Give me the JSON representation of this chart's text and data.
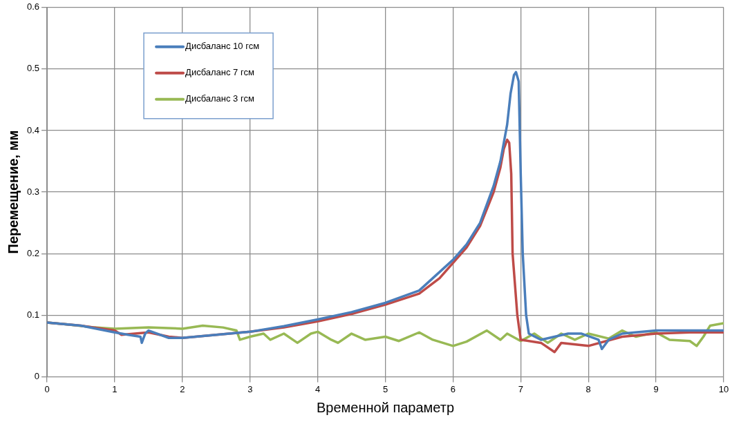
{
  "chart_data": {
    "type": "line",
    "xlabel": "Временной параметр",
    "ylabel": "Перемещение, мм",
    "xlim": [
      0,
      10
    ],
    "ylim": [
      0,
      0.6
    ],
    "xticks": [
      0,
      1,
      2,
      3,
      4,
      5,
      6,
      7,
      8,
      9,
      10
    ],
    "yticks": [
      0,
      0.1,
      0.2,
      0.3,
      0.4,
      0.5,
      0.6
    ],
    "grid": true,
    "legend": "top left",
    "marker": "none",
    "line_style": "solid",
    "series": [
      {
        "name": "Дисбаланс 10 гсм",
        "color": "#4a7ebb",
        "x": [
          0,
          0.5,
          1,
          1.2,
          1.38,
          1.4,
          1.45,
          1.5,
          1.8,
          2,
          2.5,
          3,
          3.5,
          4,
          4.5,
          5,
          5.5,
          6,
          6.2,
          6.4,
          6.6,
          6.7,
          6.8,
          6.85,
          6.9,
          6.93,
          6.97,
          7,
          7.03,
          7.08,
          7.12,
          7.3,
          7.5,
          7.7,
          7.9,
          8.15,
          8.2,
          8.3,
          8.5,
          9,
          9.5,
          10
        ],
        "values": [
          0.088,
          0.083,
          0.072,
          0.068,
          0.065,
          0.055,
          0.07,
          0.075,
          0.063,
          0.063,
          0.068,
          0.073,
          0.082,
          0.093,
          0.105,
          0.12,
          0.14,
          0.19,
          0.215,
          0.25,
          0.31,
          0.35,
          0.41,
          0.46,
          0.49,
          0.495,
          0.48,
          0.33,
          0.2,
          0.1,
          0.07,
          0.06,
          0.065,
          0.07,
          0.07,
          0.06,
          0.045,
          0.06,
          0.07,
          0.075,
          0.075,
          0.075
        ]
      },
      {
        "name": "Дисбаланс 7 гсм",
        "color": "#be4b48",
        "x": [
          0,
          0.5,
          1,
          1.1,
          1.5,
          1.8,
          2,
          3,
          3.5,
          4,
          4.5,
          5,
          5.5,
          5.8,
          6,
          6.2,
          6.4,
          6.6,
          6.7,
          6.75,
          6.8,
          6.83,
          6.86,
          6.88,
          6.95,
          7,
          7.3,
          7.5,
          7.6,
          8,
          8.5,
          9,
          9.5,
          10
        ],
        "values": [
          0.088,
          0.083,
          0.075,
          0.068,
          0.072,
          0.065,
          0.063,
          0.073,
          0.08,
          0.09,
          0.102,
          0.117,
          0.135,
          0.16,
          0.185,
          0.21,
          0.245,
          0.3,
          0.34,
          0.37,
          0.385,
          0.38,
          0.33,
          0.2,
          0.1,
          0.06,
          0.055,
          0.04,
          0.055,
          0.05,
          0.065,
          0.07,
          0.072,
          0.072
        ]
      },
      {
        "name": "Дисбаланс 3 гсм",
        "color": "#98b954",
        "x": [
          0,
          0.3,
          0.7,
          1,
          1.5,
          2,
          2.3,
          2.6,
          2.8,
          2.85,
          3,
          3.2,
          3.3,
          3.5,
          3.7,
          3.9,
          4,
          4.2,
          4.3,
          4.5,
          4.7,
          5,
          5.2,
          5.5,
          5.7,
          6,
          6.2,
          6.5,
          6.7,
          6.8,
          7,
          7.2,
          7.4,
          7.6,
          7.8,
          8,
          8.3,
          8.5,
          8.7,
          9,
          9.2,
          9.5,
          9.6,
          9.7,
          9.8,
          10
        ],
        "values": [
          0.088,
          0.085,
          0.08,
          0.078,
          0.08,
          0.078,
          0.083,
          0.08,
          0.075,
          0.06,
          0.065,
          0.07,
          0.06,
          0.07,
          0.055,
          0.07,
          0.073,
          0.06,
          0.055,
          0.07,
          0.06,
          0.065,
          0.058,
          0.072,
          0.06,
          0.05,
          0.057,
          0.075,
          0.06,
          0.07,
          0.058,
          0.07,
          0.055,
          0.07,
          0.06,
          0.07,
          0.062,
          0.075,
          0.065,
          0.072,
          0.06,
          0.058,
          0.05,
          0.065,
          0.083,
          0.087
        ]
      }
    ]
  }
}
